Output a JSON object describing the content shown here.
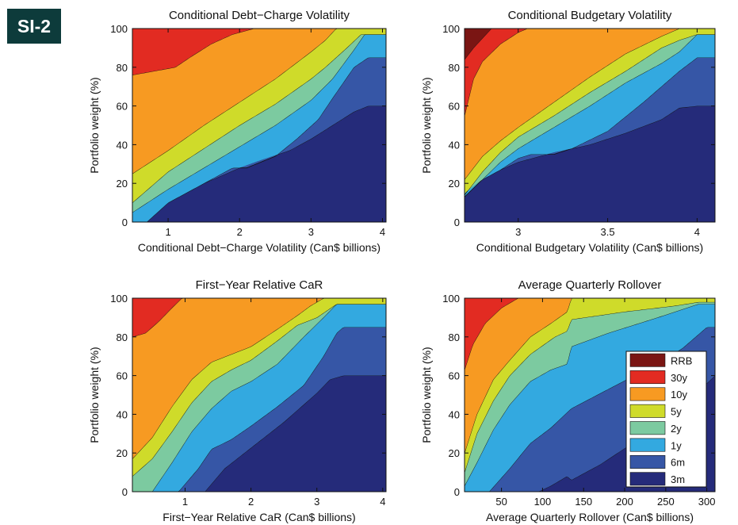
{
  "badge": "SI-2",
  "legend": {
    "entries": [
      "RRB",
      "30y",
      "10y",
      "5y",
      "2y",
      "1y",
      "6m",
      "3m"
    ],
    "placement": "lower-right of bottom-right panel"
  },
  "colors": {
    "RRB": "#7a1513",
    "30y": "#e22b22",
    "10y": "#f79a22",
    "5y": "#cfdb2a",
    "2y": "#7ccaa0",
    "1y": "#33a9e0",
    "6m": "#3656a6",
    "3m": "#252b7a"
  },
  "chart_data": [
    {
      "type": "area",
      "stacked": true,
      "title": "Conditional Debt−Charge Volatility",
      "xlabel": "Conditional Debt−Charge Volatility (Can$ billions)",
      "ylabel": "Portfolio weight (%)",
      "xlim": [
        0.5,
        4.05
      ],
      "ylim": [
        0,
        100
      ],
      "xticks": [
        1,
        2,
        3,
        4
      ],
      "xtick_labels": [
        "1",
        "2",
        "3",
        "4"
      ],
      "yticks": [
        0,
        20,
        40,
        60,
        80,
        100
      ],
      "ytick_labels": [
        "0",
        "20",
        "40",
        "60",
        "80",
        "100"
      ],
      "grid": false,
      "boundaries": {
        "3m": [
          [
            0.5,
            0
          ],
          [
            0.7,
            0
          ],
          [
            1.0,
            10
          ],
          [
            1.5,
            20
          ],
          [
            2.0,
            28
          ],
          [
            2.3,
            32
          ],
          [
            2.7,
            37
          ],
          [
            3.0,
            43
          ],
          [
            3.3,
            50
          ],
          [
            3.6,
            57
          ],
          [
            3.8,
            60
          ],
          [
            4.05,
            60
          ]
        ],
        "6m": [
          [
            0.5,
            0
          ],
          [
            0.7,
            0
          ],
          [
            1.0,
            10
          ],
          [
            1.5,
            20
          ],
          [
            1.9,
            28
          ],
          [
            2.1,
            28
          ],
          [
            2.5,
            34
          ],
          [
            2.8,
            43
          ],
          [
            3.1,
            53
          ],
          [
            3.3,
            64
          ],
          [
            3.6,
            80
          ],
          [
            3.8,
            85
          ],
          [
            4.05,
            85
          ]
        ],
        "1y": [
          [
            0.5,
            5
          ],
          [
            1.0,
            17
          ],
          [
            1.5,
            28
          ],
          [
            2.0,
            39
          ],
          [
            2.5,
            50
          ],
          [
            3.0,
            63
          ],
          [
            3.3,
            74
          ],
          [
            3.6,
            89
          ],
          [
            3.75,
            97
          ],
          [
            4.05,
            97
          ]
        ],
        "2y": [
          [
            0.5,
            10
          ],
          [
            1.0,
            26
          ],
          [
            1.5,
            38
          ],
          [
            2.0,
            50
          ],
          [
            2.5,
            61
          ],
          [
            3.0,
            74
          ],
          [
            3.2,
            80
          ],
          [
            3.5,
            90
          ],
          [
            3.7,
            97
          ],
          [
            4.05,
            97
          ]
        ],
        "5y": [
          [
            0.5,
            25
          ],
          [
            1.0,
            37
          ],
          [
            1.5,
            50
          ],
          [
            2.0,
            62
          ],
          [
            2.5,
            74
          ],
          [
            3.0,
            88
          ],
          [
            3.2,
            94
          ],
          [
            3.35,
            100
          ],
          [
            4.05,
            100
          ]
        ],
        "10y": [
          [
            0.5,
            76
          ],
          [
            0.8,
            78
          ],
          [
            1.1,
            80
          ],
          [
            1.3,
            85
          ],
          [
            1.6,
            92
          ],
          [
            1.9,
            97
          ],
          [
            2.2,
            100
          ],
          [
            4.05,
            100
          ]
        ],
        "30y": [
          [
            0.5,
            100
          ],
          [
            4.05,
            100
          ]
        ],
        "RRB": [
          [
            0.5,
            100
          ],
          [
            4.05,
            100
          ]
        ]
      }
    },
    {
      "type": "area",
      "stacked": true,
      "title": "Conditional Budgetary Volatility",
      "xlabel": "Conditional Budgetary Volatility (Can$ billions)",
      "ylabel": "Portfolio weight (%)",
      "xlim": [
        2.7,
        4.1
      ],
      "ylim": [
        0,
        100
      ],
      "xticks": [
        3,
        3.5,
        4
      ],
      "xtick_labels": [
        "3",
        "3.5",
        "4"
      ],
      "yticks": [
        0,
        20,
        40,
        60,
        80,
        100
      ],
      "ytick_labels": [
        "0",
        "20",
        "40",
        "60",
        "80",
        "100"
      ],
      "grid": false,
      "boundaries": {
        "3m": [
          [
            2.7,
            15
          ],
          [
            2.8,
            22
          ],
          [
            2.9,
            27
          ],
          [
            3.0,
            31
          ],
          [
            3.2,
            36
          ],
          [
            3.4,
            40
          ],
          [
            3.6,
            46
          ],
          [
            3.8,
            53
          ],
          [
            3.9,
            59
          ],
          [
            4.0,
            60
          ],
          [
            4.1,
            60
          ]
        ],
        "6m": [
          [
            2.7,
            15
          ],
          [
            2.8,
            22
          ],
          [
            2.9,
            27
          ],
          [
            3.0,
            33
          ],
          [
            3.07,
            35
          ],
          [
            3.2,
            35
          ],
          [
            3.3,
            38
          ],
          [
            3.5,
            47
          ],
          [
            3.7,
            62
          ],
          [
            3.9,
            78
          ],
          [
            4.0,
            85
          ],
          [
            4.1,
            85
          ]
        ],
        "1y": [
          [
            2.7,
            13
          ],
          [
            2.8,
            22
          ],
          [
            2.9,
            31
          ],
          [
            3.0,
            38
          ],
          [
            3.2,
            49
          ],
          [
            3.4,
            60
          ],
          [
            3.6,
            72
          ],
          [
            3.8,
            82
          ],
          [
            3.9,
            88
          ],
          [
            4.0,
            97
          ],
          [
            4.1,
            97
          ]
        ],
        "2y": [
          [
            2.7,
            14
          ],
          [
            2.8,
            26
          ],
          [
            2.9,
            36
          ],
          [
            3.0,
            44
          ],
          [
            3.2,
            55
          ],
          [
            3.4,
            67
          ],
          [
            3.6,
            78
          ],
          [
            3.8,
            90
          ],
          [
            3.9,
            94
          ],
          [
            4.0,
            97
          ],
          [
            4.1,
            97
          ]
        ],
        "5y": [
          [
            2.7,
            22
          ],
          [
            2.8,
            34
          ],
          [
            2.9,
            42
          ],
          [
            3.0,
            49
          ],
          [
            3.2,
            62
          ],
          [
            3.4,
            75
          ],
          [
            3.6,
            87
          ],
          [
            3.8,
            96
          ],
          [
            3.9,
            100
          ],
          [
            4.1,
            100
          ]
        ],
        "10y": [
          [
            2.7,
            55
          ],
          [
            2.75,
            74
          ],
          [
            2.8,
            83
          ],
          [
            2.9,
            92
          ],
          [
            3.0,
            98
          ],
          [
            3.05,
            100
          ],
          [
            4.1,
            100
          ]
        ],
        "30y": [
          [
            2.7,
            84
          ],
          [
            2.75,
            90
          ],
          [
            2.8,
            95
          ],
          [
            2.85,
            100
          ],
          [
            4.1,
            100
          ]
        ],
        "RRB": [
          [
            2.7,
            100
          ],
          [
            4.1,
            100
          ]
        ]
      }
    },
    {
      "type": "area",
      "stacked": true,
      "title": "First−Year Relative CaR",
      "xlabel": "First−Year Relative CaR (Can$ billions)",
      "ylabel": "Portfolio weight (%)",
      "xlim": [
        0.2,
        4.05
      ],
      "ylim": [
        0,
        100
      ],
      "xticks": [
        1,
        2,
        3,
        4
      ],
      "xtick_labels": [
        "1",
        "2",
        "3",
        "4"
      ],
      "yticks": [
        0,
        20,
        40,
        60,
        80,
        100
      ],
      "ytick_labels": [
        "0",
        "20",
        "40",
        "60",
        "80",
        "100"
      ],
      "grid": false,
      "boundaries": {
        "3m": [
          [
            0.2,
            0
          ],
          [
            1.3,
            0
          ],
          [
            1.6,
            12
          ],
          [
            1.9,
            20
          ],
          [
            2.2,
            28
          ],
          [
            2.5,
            36
          ],
          [
            2.8,
            45
          ],
          [
            3.0,
            51
          ],
          [
            3.2,
            58
          ],
          [
            3.4,
            60
          ],
          [
            4.05,
            60
          ]
        ],
        "6m": [
          [
            0.2,
            0
          ],
          [
            0.9,
            0
          ],
          [
            1.2,
            12
          ],
          [
            1.4,
            22
          ],
          [
            1.7,
            27
          ],
          [
            2.0,
            34
          ],
          [
            2.4,
            44
          ],
          [
            2.8,
            55
          ],
          [
            3.1,
            70
          ],
          [
            3.3,
            82
          ],
          [
            3.4,
            85
          ],
          [
            4.05,
            85
          ]
        ],
        "1y": [
          [
            0.2,
            0
          ],
          [
            0.5,
            0
          ],
          [
            0.8,
            15
          ],
          [
            1.1,
            31
          ],
          [
            1.4,
            43
          ],
          [
            1.7,
            52
          ],
          [
            2.0,
            57
          ],
          [
            2.4,
            66
          ],
          [
            2.8,
            80
          ],
          [
            3.1,
            90
          ],
          [
            3.3,
            97
          ],
          [
            4.05,
            97
          ]
        ],
        "2y": [
          [
            0.2,
            8
          ],
          [
            0.5,
            17
          ],
          [
            0.8,
            31
          ],
          [
            1.1,
            46
          ],
          [
            1.4,
            57
          ],
          [
            1.7,
            63
          ],
          [
            2.0,
            68
          ],
          [
            2.4,
            78
          ],
          [
            2.7,
            86
          ],
          [
            3.0,
            90
          ],
          [
            3.3,
            97
          ],
          [
            4.05,
            97
          ]
        ],
        "5y": [
          [
            0.2,
            17
          ],
          [
            0.5,
            28
          ],
          [
            0.8,
            44
          ],
          [
            1.1,
            58
          ],
          [
            1.4,
            67
          ],
          [
            1.7,
            71
          ],
          [
            2.0,
            75
          ],
          [
            2.4,
            84
          ],
          [
            2.7,
            91
          ],
          [
            2.9,
            96
          ],
          [
            3.1,
            100
          ],
          [
            4.05,
            100
          ]
        ],
        "10y": [
          [
            0.2,
            80
          ],
          [
            0.4,
            82
          ],
          [
            0.6,
            88
          ],
          [
            0.8,
            95
          ],
          [
            0.95,
            100
          ],
          [
            4.05,
            100
          ]
        ],
        "30y": [
          [
            0.2,
            100
          ],
          [
            4.05,
            100
          ]
        ],
        "RRB": [
          [
            0.2,
            100
          ],
          [
            4.05,
            100
          ]
        ]
      }
    },
    {
      "type": "area",
      "stacked": true,
      "title": "Average Quarterly Rollover",
      "xlabel": "Average Quarterly Rollover (Can$ billions)",
      "ylabel": "Portfolio weight (%)",
      "xlim": [
        5,
        310
      ],
      "ylim": [
        0,
        100
      ],
      "xticks": [
        50,
        100,
        150,
        200,
        250,
        300
      ],
      "xtick_labels": [
        "50",
        "100",
        "150",
        "200",
        "250",
        "300"
      ],
      "yticks": [
        0,
        20,
        40,
        60,
        80,
        100
      ],
      "ytick_labels": [
        "0",
        "20",
        "40",
        "60",
        "80",
        "100"
      ],
      "grid": false,
      "boundaries": {
        "3m": [
          [
            5,
            0
          ],
          [
            95,
            0
          ],
          [
            110,
            3
          ],
          [
            130,
            8
          ],
          [
            135,
            6
          ],
          [
            170,
            14
          ],
          [
            220,
            28
          ],
          [
            260,
            40
          ],
          [
            290,
            52
          ],
          [
            310,
            60
          ]
        ],
        "6m": [
          [
            5,
            0
          ],
          [
            35,
            0
          ],
          [
            60,
            12
          ],
          [
            85,
            25
          ],
          [
            110,
            33
          ],
          [
            135,
            43
          ],
          [
            180,
            53
          ],
          [
            230,
            64
          ],
          [
            270,
            74
          ],
          [
            300,
            85
          ],
          [
            310,
            85
          ]
        ],
        "1y": [
          [
            5,
            3
          ],
          [
            20,
            15
          ],
          [
            40,
            32
          ],
          [
            60,
            45
          ],
          [
            85,
            57
          ],
          [
            110,
            63
          ],
          [
            130,
            66
          ],
          [
            135,
            75
          ],
          [
            180,
            82
          ],
          [
            240,
            90
          ],
          [
            290,
            97
          ],
          [
            310,
            97
          ]
        ],
        "2y": [
          [
            5,
            10
          ],
          [
            20,
            30
          ],
          [
            40,
            47
          ],
          [
            60,
            60
          ],
          [
            85,
            71
          ],
          [
            115,
            80
          ],
          [
            130,
            83
          ],
          [
            135,
            89
          ],
          [
            200,
            93
          ],
          [
            260,
            96
          ],
          [
            290,
            98
          ],
          [
            310,
            98
          ]
        ],
        "5y": [
          [
            5,
            20
          ],
          [
            20,
            40
          ],
          [
            40,
            58
          ],
          [
            60,
            68
          ],
          [
            85,
            80
          ],
          [
            110,
            87
          ],
          [
            130,
            93
          ],
          [
            135,
            100
          ],
          [
            310,
            100
          ]
        ],
        "10y": [
          [
            5,
            63
          ],
          [
            15,
            76
          ],
          [
            30,
            87
          ],
          [
            50,
            95
          ],
          [
            70,
            100
          ],
          [
            310,
            100
          ]
        ],
        "30y": [
          [
            5,
            100
          ],
          [
            310,
            100
          ]
        ],
        "RRB": [
          [
            5,
            100
          ],
          [
            310,
            100
          ]
        ]
      }
    }
  ]
}
